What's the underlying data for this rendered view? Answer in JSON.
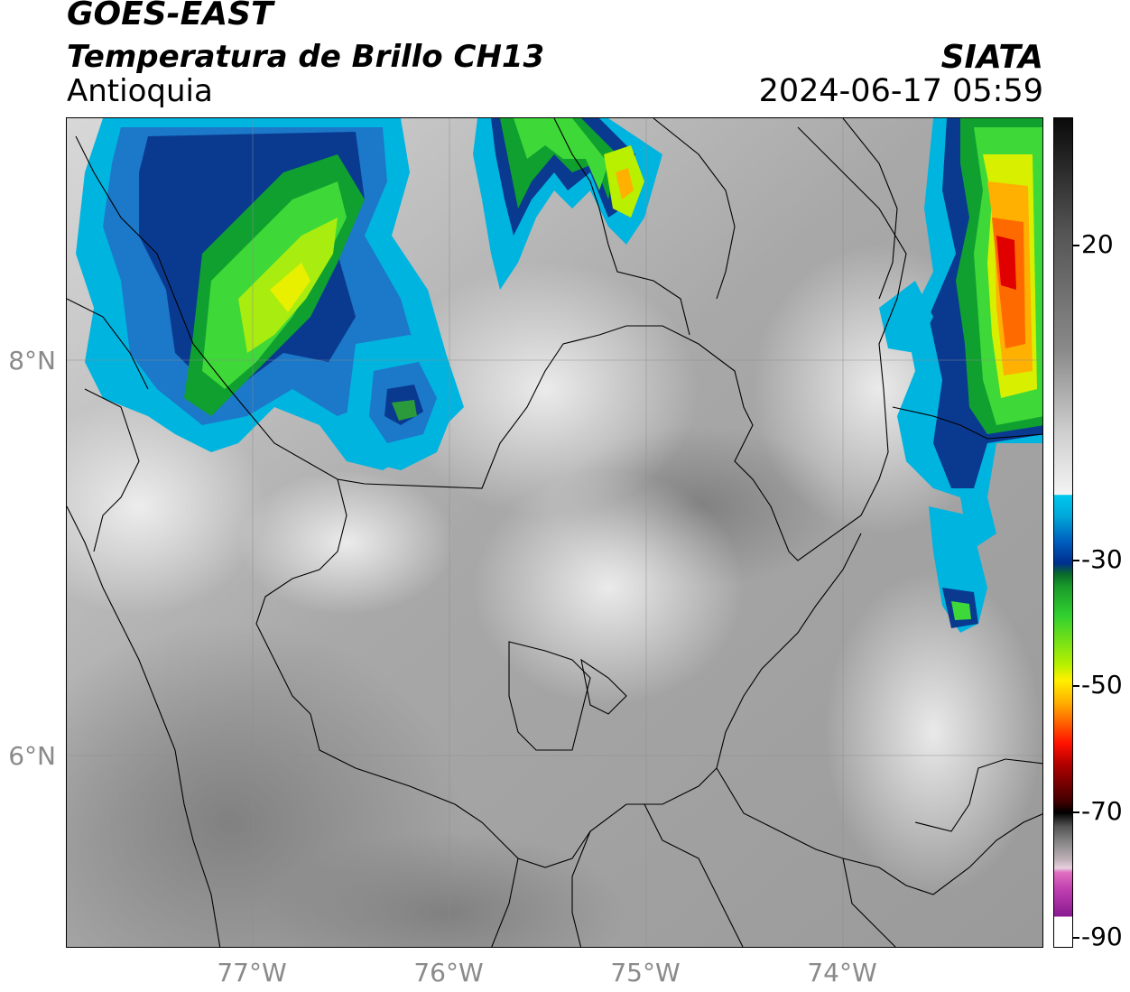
{
  "header": {
    "satellite": "GOES-EAST",
    "product": "Temperatura de Brillo CH13",
    "organization": "SIATA",
    "region": "Antioquia",
    "datetime": "2024-06-17 05:59"
  },
  "axes": {
    "latitude_labels": [
      "8°N",
      "6°N"
    ],
    "longitude_labels": [
      "77°W",
      "76°W",
      "75°W",
      "74°W"
    ]
  },
  "colorbar": {
    "tick_labels": [
      "20",
      "-30",
      "-50",
      "-70",
      "-90"
    ]
  }
}
